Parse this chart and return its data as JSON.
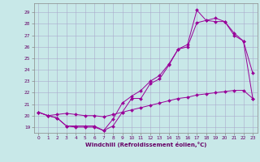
{
  "xlabel": "Windchill (Refroidissement éolien,°C)",
  "bg_color": "#c8e8e8",
  "grid_color": "#aaaacc",
  "line_color": "#990099",
  "xlim": [
    -0.5,
    23.5
  ],
  "ylim": [
    18.5,
    29.8
  ],
  "xticks": [
    0,
    1,
    2,
    3,
    4,
    5,
    6,
    7,
    8,
    9,
    10,
    11,
    12,
    13,
    14,
    15,
    16,
    17,
    18,
    19,
    20,
    21,
    22,
    23
  ],
  "yticks": [
    19,
    20,
    21,
    22,
    23,
    24,
    25,
    26,
    27,
    28,
    29
  ],
  "line1_x": [
    0,
    1,
    2,
    3,
    4,
    5,
    6,
    7,
    8,
    9,
    10,
    11,
    12,
    13,
    14,
    15,
    16,
    17,
    18,
    19,
    20,
    21,
    22,
    23
  ],
  "line1_y": [
    20.3,
    20.0,
    19.8,
    19.1,
    19.1,
    19.1,
    19.1,
    18.7,
    19.1,
    20.3,
    21.5,
    21.5,
    22.8,
    23.2,
    24.4,
    25.8,
    26.0,
    28.1,
    28.3,
    28.2,
    28.2,
    27.0,
    26.5,
    23.7
  ],
  "line2_x": [
    0,
    1,
    2,
    3,
    4,
    5,
    6,
    7,
    8,
    9,
    10,
    11,
    12,
    13,
    14,
    15,
    16,
    17,
    18,
    19,
    20,
    21,
    22,
    23
  ],
  "line2_y": [
    20.3,
    20.0,
    19.8,
    19.1,
    19.0,
    19.0,
    19.0,
    18.7,
    19.7,
    21.1,
    21.7,
    22.2,
    23.0,
    23.5,
    24.5,
    25.8,
    26.2,
    29.2,
    28.3,
    28.5,
    28.2,
    27.2,
    26.5,
    21.5
  ],
  "line3_x": [
    0,
    1,
    2,
    3,
    4,
    5,
    6,
    7,
    8,
    9,
    10,
    11,
    12,
    13,
    14,
    15,
    16,
    17,
    18,
    19,
    20,
    21,
    22,
    23
  ],
  "line3_y": [
    20.3,
    20.0,
    20.1,
    20.2,
    20.1,
    20.0,
    20.0,
    19.9,
    20.1,
    20.3,
    20.5,
    20.7,
    20.9,
    21.1,
    21.3,
    21.5,
    21.6,
    21.8,
    21.9,
    22.0,
    22.1,
    22.2,
    22.2,
    21.5
  ]
}
